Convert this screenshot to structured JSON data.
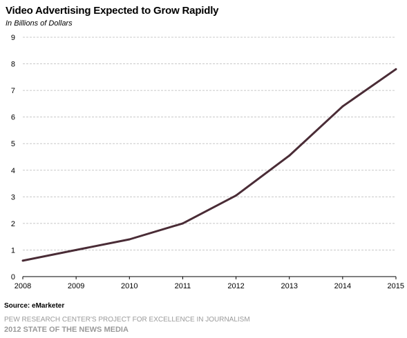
{
  "chart_data": {
    "type": "line",
    "title": "Video Advertising Expected to Grow Rapidly",
    "subtitle": "In Billions of Dollars",
    "xlabel": "",
    "ylabel": "",
    "ylim": [
      0,
      9
    ],
    "yticks": [
      0,
      1,
      2,
      3,
      4,
      5,
      6,
      7,
      8,
      9
    ],
    "grid": true,
    "x": [
      "2008",
      "2009",
      "2010",
      "2011",
      "2012",
      "2013",
      "2014",
      "2015"
    ],
    "series": [
      {
        "values": [
          0.6,
          1.0,
          1.4,
          2.0,
          3.05,
          4.55,
          6.4,
          7.8
        ]
      }
    ],
    "line_color": "#4a2c36",
    "grid_color": "#c8c8c8"
  },
  "footer": {
    "source": "Source: eMarketer",
    "org": "PEW RESEARCH CENTER'S PROJECT FOR EXCELLENCE IN JOURNALISM",
    "report": "2012 STATE OF THE NEWS MEDIA"
  }
}
